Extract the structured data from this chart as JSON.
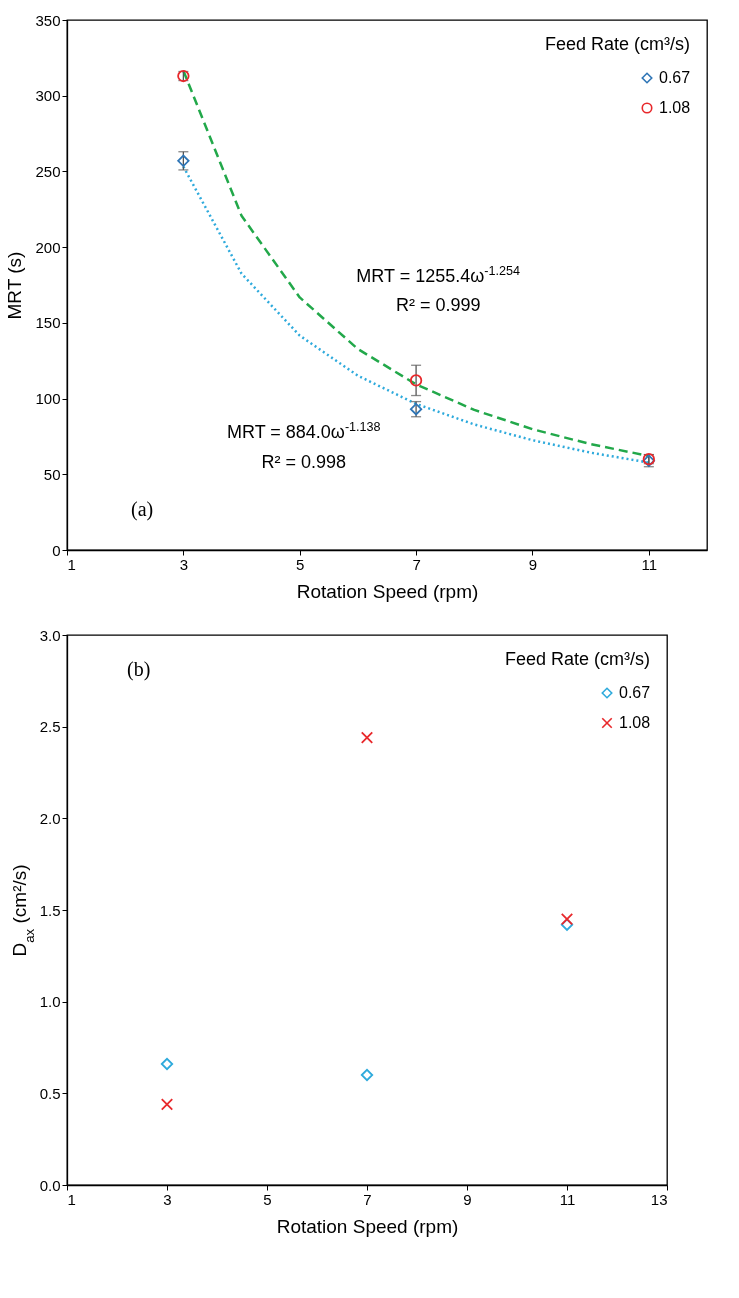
{
  "chart_data": [
    {
      "type": "scatter",
      "xlabel": "Rotation Speed (rpm)",
      "ylabel": "MRT (s)",
      "legend_title": "Feed Rate (cm³/s)",
      "legend": "top right",
      "grid": false,
      "xlim": [
        1,
        12
      ],
      "xticks": [
        1,
        3,
        5,
        7,
        9,
        11
      ],
      "ylim": [
        0,
        350
      ],
      "yticks": [
        0,
        50,
        100,
        150,
        200,
        250,
        300,
        350
      ],
      "series": [
        {
          "type": "line",
          "color": "#2eaadc",
          "line_style": "dotted",
          "marker": "none",
          "x": [
            3,
            4,
            5,
            6,
            7,
            8,
            9,
            10,
            11
          ],
          "values": [
            253.2,
            182.5,
            141.6,
            115.1,
            96.5,
            82.9,
            72.5,
            64.3,
            57.7
          ]
        },
        {
          "type": "line",
          "color": "#22a84a",
          "line_style": "dashed",
          "marker": "none",
          "x": [
            3,
            4,
            5,
            6,
            7,
            8,
            9,
            10,
            11
          ],
          "values": [
            316.5,
            220.7,
            166.8,
            132.7,
            109.4,
            92.5,
            79.8,
            69.9,
            62.1
          ]
        },
        {
          "name": "0.67",
          "color": "#2e75b6",
          "marker": "diamond",
          "x": [
            3,
            7,
            11
          ],
          "values": [
            257,
            93,
            59
          ],
          "errors": [
            6,
            5,
            4
          ]
        },
        {
          "name": "1.08",
          "color": "#e8282b",
          "marker": "circle",
          "x": [
            3,
            7,
            11
          ],
          "values": [
            313,
            112,
            60
          ],
          "errors": [
            3,
            10,
            3
          ]
        }
      ],
      "annotations": [
        "MRT = 1255.4ω$^{-1.254}$",
        "R² = 0.999",
        "MRT = 884.0ω$^{-1.138}$",
        "R² = 0.998",
        "(a)"
      ]
    },
    {
      "type": "scatter",
      "xlabel": "Rotation Speed (rpm)",
      "ylabel": "D$_{ax}$ (cm²/s)",
      "legend_title": "Feed Rate (cm³/s)",
      "legend": "top right",
      "grid": false,
      "xlim": [
        1,
        13
      ],
      "xticks": [
        1,
        3,
        5,
        7,
        9,
        11,
        13
      ],
      "ylim": [
        0,
        3
      ],
      "yticks": [
        {
          "value": 0,
          "label": "0.0"
        },
        {
          "value": 0.5,
          "label": "0.5"
        },
        {
          "value": 1,
          "label": "1.0"
        },
        {
          "value": 1.5,
          "label": "1.5"
        },
        {
          "value": 2,
          "label": "2.0"
        },
        {
          "value": 2.5,
          "label": "2.5"
        },
        {
          "value": 3,
          "label": "3.0"
        }
      ],
      "series": [
        {
          "name": "0.67",
          "color": "#2eaadc",
          "marker": "diamond",
          "x": [
            3,
            7,
            11
          ],
          "values": [
            0.66,
            0.6,
            1.42
          ]
        },
        {
          "name": "1.08",
          "color": "#e8282b",
          "marker": "cross",
          "x": [
            3,
            7,
            11
          ],
          "values": [
            0.44,
            2.44,
            1.45
          ]
        }
      ],
      "annotations": [
        "(b)"
      ]
    }
  ]
}
